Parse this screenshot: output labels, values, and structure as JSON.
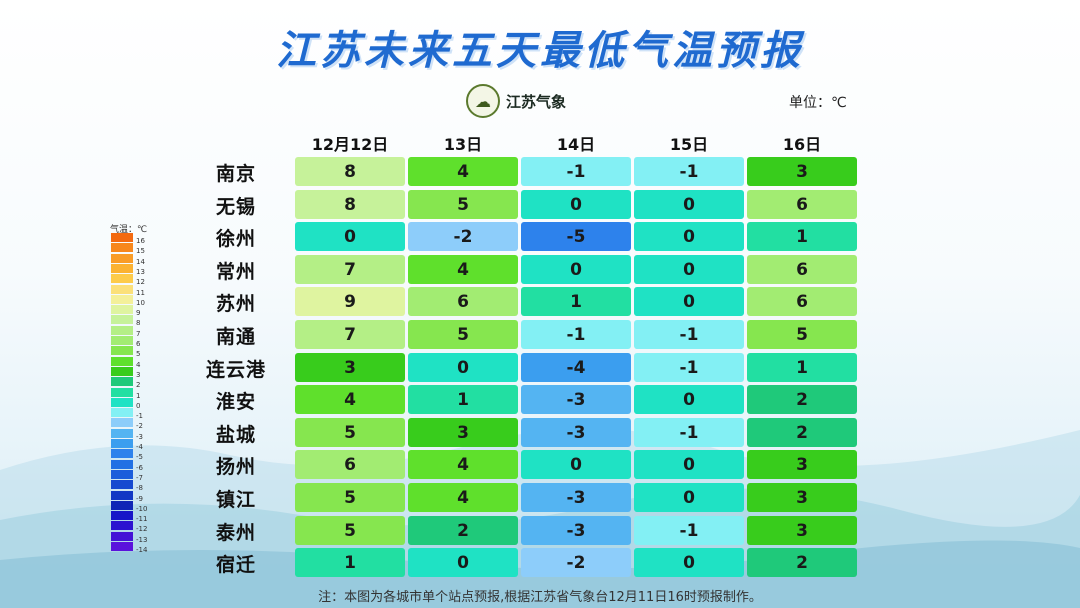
{
  "title": "江苏未来五天最低气温预报",
  "logo": {
    "text": "江苏气象",
    "icon": "weather-bureau-emblem-icon"
  },
  "unit": "单位：℃",
  "days": [
    "12月12日",
    "13日",
    "14日",
    "15日",
    "16日"
  ],
  "cities": [
    {
      "name": "南京",
      "temps": [
        8,
        4,
        -1,
        -1,
        3
      ]
    },
    {
      "name": "无锡",
      "temps": [
        8,
        5,
        0,
        0,
        6
      ]
    },
    {
      "name": "徐州",
      "temps": [
        0,
        -2,
        -5,
        0,
        1
      ]
    },
    {
      "name": "常州",
      "temps": [
        7,
        4,
        0,
        0,
        6
      ]
    },
    {
      "name": "苏州",
      "temps": [
        9,
        6,
        1,
        0,
        6
      ]
    },
    {
      "name": "南通",
      "temps": [
        7,
        5,
        -1,
        -1,
        5
      ]
    },
    {
      "name": "连云港",
      "temps": [
        3,
        0,
        -4,
        -1,
        1
      ]
    },
    {
      "name": "淮安",
      "temps": [
        4,
        1,
        -3,
        0,
        2
      ]
    },
    {
      "name": "盐城",
      "temps": [
        5,
        3,
        -3,
        -1,
        2
      ]
    },
    {
      "name": "扬州",
      "temps": [
        6,
        4,
        0,
        0,
        3
      ]
    },
    {
      "name": "镇江",
      "temps": [
        5,
        4,
        -3,
        0,
        3
      ]
    },
    {
      "name": "泰州",
      "temps": [
        5,
        2,
        -3,
        -1,
        3
      ]
    },
    {
      "name": "宿迁",
      "temps": [
        1,
        0,
        -2,
        0,
        2
      ]
    }
  ],
  "legend": {
    "title": "气温：℃",
    "values": [
      16,
      15,
      14,
      13,
      12,
      11,
      10,
      9,
      8,
      7,
      6,
      5,
      4,
      3,
      2,
      1,
      0,
      -1,
      -2,
      -3,
      -4,
      -5,
      -6,
      -7,
      -8,
      -9,
      -10,
      -11,
      -12,
      -13,
      -14
    ]
  },
  "colors": {
    "16": "#f36a10",
    "15": "#f7871c",
    "14": "#f99c27",
    "13": "#fbb232",
    "12": "#fdcb4a",
    "11": "#fbe07a",
    "10": "#f4f09a",
    "9": "#dff4a0",
    "8": "#c6f29a",
    "7": "#b4ef86",
    "6": "#a2ec72",
    "5": "#86e64f",
    "4": "#5fe02c",
    "3": "#38cc1c",
    "2": "#1fc97a",
    "1": "#22dfa2",
    "0": "#1fe2c4",
    "-1": "#83f0f4",
    "-2": "#8dcdfa",
    "-3": "#54b4f2",
    "-4": "#3b9eef",
    "-5": "#2d82ec",
    "-6": "#2170e4",
    "-7": "#1a5ddb",
    "-8": "#164ad0",
    "-9": "#1238c4",
    "-10": "#0f26b6",
    "-11": "#1616c8",
    "-12": "#2b12d0",
    "-13": "#4312d6",
    "-14": "#5a12dc"
  },
  "note": "注：本图为各城市单个站点预报,根据江苏省气象台12月11日16时预报制作。"
}
